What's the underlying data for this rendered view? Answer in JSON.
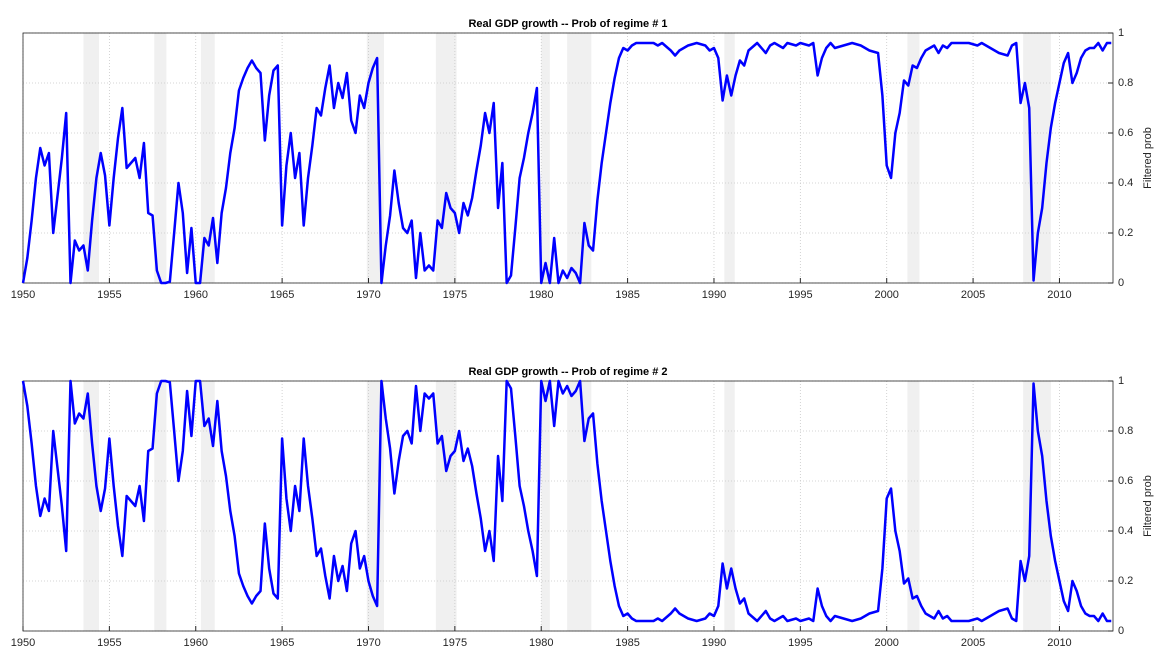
{
  "chart_data": [
    {
      "type": "line",
      "title": "Real GDP growth -- Prob of regime # 1",
      "ylabel": "Filtered prob",
      "x": [
        1950,
        1950.25,
        1950.5,
        1950.75,
        1951,
        1951.25,
        1951.5,
        1951.75,
        1952,
        1952.25,
        1952.5,
        1952.75,
        1953,
        1953.25,
        1953.5,
        1953.75,
        1954,
        1954.25,
        1954.5,
        1954.75,
        1955,
        1955.25,
        1955.5,
        1955.75,
        1956,
        1956.25,
        1956.5,
        1956.75,
        1957,
        1957.25,
        1957.5,
        1957.75,
        1958,
        1958.25,
        1958.5,
        1958.75,
        1959,
        1959.25,
        1959.5,
        1959.75,
        1960,
        1960.25,
        1960.5,
        1960.75,
        1961,
        1961.25,
        1961.5,
        1961.75,
        1962,
        1962.25,
        1962.5,
        1962.75,
        1963,
        1963.25,
        1963.5,
        1963.75,
        1964,
        1964.25,
        1964.5,
        1964.75,
        1965,
        1965.25,
        1965.5,
        1965.75,
        1966,
        1966.25,
        1966.5,
        1966.75,
        1967,
        1967.25,
        1967.5,
        1967.75,
        1968,
        1968.25,
        1968.5,
        1968.75,
        1969,
        1969.25,
        1969.5,
        1969.75,
        1970,
        1970.25,
        1970.5,
        1970.75,
        1971,
        1971.25,
        1971.5,
        1971.75,
        1972,
        1972.25,
        1972.5,
        1972.75,
        1973,
        1973.25,
        1973.5,
        1973.75,
        1974,
        1974.25,
        1974.5,
        1974.75,
        1975,
        1975.25,
        1975.5,
        1975.75,
        1976,
        1976.25,
        1976.5,
        1976.75,
        1977,
        1977.25,
        1977.5,
        1977.75,
        1978,
        1978.25,
        1978.5,
        1978.75,
        1979,
        1979.25,
        1979.5,
        1979.75,
        1980,
        1980.25,
        1980.5,
        1980.75,
        1981,
        1981.25,
        1981.5,
        1981.75,
        1982,
        1982.25,
        1982.5,
        1982.75,
        1983,
        1983.25,
        1983.5,
        1983.75,
        1984,
        1984.25,
        1984.5,
        1984.75,
        1985,
        1985.25,
        1985.5,
        1985.75,
        1986,
        1986.5,
        1986.75,
        1987,
        1987.5,
        1987.75,
        1988,
        1988.5,
        1989,
        1989.5,
        1989.75,
        1990,
        1990.25,
        1990.5,
        1990.75,
        1991,
        1991.25,
        1991.5,
        1991.75,
        1992,
        1992.5,
        1993,
        1993.25,
        1993.5,
        1994,
        1994.25,
        1994.75,
        1995,
        1995.5,
        1995.75,
        1996,
        1996.25,
        1996.5,
        1996.75,
        1997,
        1997.5,
        1998,
        1998.5,
        1999,
        1999.5,
        1999.75,
        2000,
        2000.25,
        2000.5,
        2000.75,
        2001,
        2001.25,
        2001.5,
        2001.75,
        2002,
        2002.25,
        2002.5,
        2002.75,
        2003,
        2003.25,
        2003.5,
        2003.75,
        2004.25,
        2004.75,
        2005.25,
        2005.5,
        2006,
        2006.5,
        2007,
        2007.25,
        2007.5,
        2007.75,
        2008,
        2008.25,
        2008.5,
        2008.75,
        2009,
        2009.25,
        2009.5,
        2009.75,
        2010,
        2010.25,
        2010.5,
        2010.75,
        2011,
        2011.25,
        2011.5,
        2011.75,
        2012,
        2012.25,
        2012.5,
        2012.75,
        2013
      ],
      "series": [
        {
          "color": "#0000ff",
          "values": [
            0,
            0.1,
            0.25,
            0.42,
            0.54,
            0.47,
            0.52,
            0.2,
            0.35,
            0.5,
            0.68,
            0,
            0.17,
            0.13,
            0.15,
            0.05,
            0.25,
            0.42,
            0.52,
            0.43,
            0.23,
            0.42,
            0.58,
            0.7,
            0.46,
            0.48,
            0.5,
            0.42,
            0.56,
            0.28,
            0.27,
            0.05,
            0,
            0,
            0.005,
            0.2,
            0.4,
            0.28,
            0.04,
            0.22,
            0,
            0,
            0.18,
            0.15,
            0.26,
            0.08,
            0.28,
            0.38,
            0.52,
            0.62,
            0.77,
            0.82,
            0.86,
            0.89,
            0.86,
            0.84,
            0.57,
            0.75,
            0.85,
            0.87,
            0.23,
            0.47,
            0.6,
            0.42,
            0.52,
            0.23,
            0.42,
            0.55,
            0.7,
            0.67,
            0.78,
            0.87,
            0.7,
            0.8,
            0.74,
            0.84,
            0.65,
            0.6,
            0.75,
            0.7,
            0.8,
            0.86,
            0.9,
            0,
            0.15,
            0.27,
            0.45,
            0.32,
            0.22,
            0.2,
            0.25,
            0.02,
            0.2,
            0.05,
            0.07,
            0.05,
            0.25,
            0.22,
            0.36,
            0.3,
            0.28,
            0.2,
            0.32,
            0.27,
            0.34,
            0.45,
            0.55,
            0.68,
            0.6,
            0.72,
            0.3,
            0.48,
            0,
            0.03,
            0.22,
            0.42,
            0.5,
            0.6,
            0.68,
            0.78,
            0,
            0.08,
            0,
            0.18,
            0,
            0.05,
            0.02,
            0.06,
            0.04,
            0,
            0.24,
            0.15,
            0.13,
            0.33,
            0.48,
            0.6,
            0.72,
            0.82,
            0.9,
            0.94,
            0.93,
            0.95,
            0.96,
            0.96,
            0.96,
            0.96,
            0.95,
            0.96,
            0.93,
            0.91,
            0.93,
            0.95,
            0.96,
            0.95,
            0.93,
            0.94,
            0.9,
            0.73,
            0.83,
            0.75,
            0.83,
            0.89,
            0.87,
            0.93,
            0.96,
            0.92,
            0.95,
            0.96,
            0.94,
            0.96,
            0.95,
            0.96,
            0.95,
            0.96,
            0.83,
            0.9,
            0.94,
            0.96,
            0.94,
            0.95,
            0.96,
            0.95,
            0.93,
            0.92,
            0.75,
            0.47,
            0.42,
            0.6,
            0.68,
            0.81,
            0.79,
            0.87,
            0.86,
            0.9,
            0.93,
            0.94,
            0.95,
            0.92,
            0.95,
            0.94,
            0.96,
            0.96,
            0.96,
            0.95,
            0.96,
            0.94,
            0.92,
            0.91,
            0.95,
            0.96,
            0.72,
            0.8,
            0.7,
            0.01,
            0.2,
            0.3,
            0.48,
            0.62,
            0.72,
            0.8,
            0.88,
            0.92,
            0.8,
            0.84,
            0.9,
            0.93,
            0.94,
            0.94,
            0.96,
            0.93,
            0.96,
            0.96
          ]
        }
      ],
      "xlim": [
        1950,
        2013.1
      ],
      "xticks": [
        1950,
        1955,
        1960,
        1965,
        1970,
        1975,
        1980,
        1985,
        1990,
        1995,
        2000,
        2005,
        2010
      ],
      "ylim": [
        0,
        1
      ],
      "yticks": [
        0,
        0.2,
        0.4,
        0.6,
        0.8,
        1
      ],
      "grid": true,
      "shade_color": "#f0f0f0",
      "shaded_periods": [
        [
          1953.5,
          1954.4
        ],
        [
          1957.6,
          1958.3
        ],
        [
          1960.3,
          1961.1
        ],
        [
          1969.9,
          1970.9
        ],
        [
          1973.9,
          1975.1
        ],
        [
          1980.0,
          1980.5
        ],
        [
          1981.5,
          1982.9
        ],
        [
          1990.6,
          1991.2
        ],
        [
          2001.2,
          2001.9
        ],
        [
          2007.9,
          2009.5
        ]
      ]
    },
    {
      "type": "line",
      "title": "Real GDP growth -- Prob of regime # 2",
      "ylabel": "Filtered prob",
      "x": [
        1950,
        1950.25,
        1950.5,
        1950.75,
        1951,
        1951.25,
        1951.5,
        1951.75,
        1952,
        1952.25,
        1952.5,
        1952.75,
        1953,
        1953.25,
        1953.5,
        1953.75,
        1954,
        1954.25,
        1954.5,
        1954.75,
        1955,
        1955.25,
        1955.5,
        1955.75,
        1956,
        1956.25,
        1956.5,
        1956.75,
        1957,
        1957.25,
        1957.5,
        1957.75,
        1958,
        1958.25,
        1958.5,
        1958.75,
        1959,
        1959.25,
        1959.5,
        1959.75,
        1960,
        1960.25,
        1960.5,
        1960.75,
        1961,
        1961.25,
        1961.5,
        1961.75,
        1962,
        1962.25,
        1962.5,
        1962.75,
        1963,
        1963.25,
        1963.5,
        1963.75,
        1964,
        1964.25,
        1964.5,
        1964.75,
        1965,
        1965.25,
        1965.5,
        1965.75,
        1966,
        1966.25,
        1966.5,
        1966.75,
        1967,
        1967.25,
        1967.5,
        1967.75,
        1968,
        1968.25,
        1968.5,
        1968.75,
        1969,
        1969.25,
        1969.5,
        1969.75,
        1970,
        1970.25,
        1970.5,
        1970.75,
        1971,
        1971.25,
        1971.5,
        1971.75,
        1972,
        1972.25,
        1972.5,
        1972.75,
        1973,
        1973.25,
        1973.5,
        1973.75,
        1974,
        1974.25,
        1974.5,
        1974.75,
        1975,
        1975.25,
        1975.5,
        1975.75,
        1976,
        1976.25,
        1976.5,
        1976.75,
        1977,
        1977.25,
        1977.5,
        1977.75,
        1978,
        1978.25,
        1978.5,
        1978.75,
        1979,
        1979.25,
        1979.5,
        1979.75,
        1980,
        1980.25,
        1980.5,
        1980.75,
        1981,
        1981.25,
        1981.5,
        1981.75,
        1982,
        1982.25,
        1982.5,
        1982.75,
        1983,
        1983.25,
        1983.5,
        1983.75,
        1984,
        1984.25,
        1984.5,
        1984.75,
        1985,
        1985.25,
        1985.5,
        1985.75,
        1986,
        1986.5,
        1986.75,
        1987,
        1987.5,
        1987.75,
        1988,
        1988.5,
        1989,
        1989.5,
        1989.75,
        1990,
        1990.25,
        1990.5,
        1990.75,
        1991,
        1991.25,
        1991.5,
        1991.75,
        1992,
        1992.5,
        1993,
        1993.25,
        1993.5,
        1994,
        1994.25,
        1994.75,
        1995,
        1995.5,
        1995.75,
        1996,
        1996.25,
        1996.5,
        1996.75,
        1997,
        1997.5,
        1998,
        1998.5,
        1999,
        1999.5,
        1999.75,
        2000,
        2000.25,
        2000.5,
        2000.75,
        2001,
        2001.25,
        2001.5,
        2001.75,
        2002,
        2002.25,
        2002.5,
        2002.75,
        2003,
        2003.25,
        2003.5,
        2003.75,
        2004.25,
        2004.75,
        2005.25,
        2005.5,
        2006,
        2006.5,
        2007,
        2007.25,
        2007.5,
        2007.75,
        2008,
        2008.25,
        2008.5,
        2008.75,
        2009,
        2009.25,
        2009.5,
        2009.75,
        2010,
        2010.25,
        2010.5,
        2010.75,
        2011,
        2011.25,
        2011.5,
        2011.75,
        2012,
        2012.25,
        2012.5,
        2012.75,
        2013
      ],
      "series": [
        {
          "color": "#0000ff",
          "values": [
            1,
            0.9,
            0.75,
            0.58,
            0.46,
            0.53,
            0.48,
            0.8,
            0.65,
            0.5,
            0.32,
            1,
            0.83,
            0.87,
            0.85,
            0.95,
            0.75,
            0.58,
            0.48,
            0.57,
            0.77,
            0.58,
            0.42,
            0.3,
            0.54,
            0.52,
            0.5,
            0.58,
            0.44,
            0.72,
            0.73,
            0.95,
            1,
            1,
            0.995,
            0.8,
            0.6,
            0.72,
            0.96,
            0.78,
            1,
            1,
            0.82,
            0.85,
            0.74,
            0.92,
            0.72,
            0.62,
            0.48,
            0.38,
            0.23,
            0.18,
            0.14,
            0.11,
            0.14,
            0.16,
            0.43,
            0.25,
            0.15,
            0.13,
            0.77,
            0.53,
            0.4,
            0.58,
            0.48,
            0.77,
            0.58,
            0.45,
            0.3,
            0.33,
            0.22,
            0.13,
            0.3,
            0.2,
            0.26,
            0.16,
            0.35,
            0.4,
            0.25,
            0.3,
            0.2,
            0.14,
            0.1,
            1,
            0.85,
            0.73,
            0.55,
            0.68,
            0.78,
            0.8,
            0.75,
            0.98,
            0.8,
            0.95,
            0.93,
            0.95,
            0.75,
            0.78,
            0.64,
            0.7,
            0.72,
            0.8,
            0.68,
            0.73,
            0.66,
            0.55,
            0.45,
            0.32,
            0.4,
            0.28,
            0.7,
            0.52,
            1,
            0.97,
            0.78,
            0.58,
            0.5,
            0.4,
            0.32,
            0.22,
            1,
            0.92,
            1,
            0.82,
            1,
            0.95,
            0.98,
            0.94,
            0.96,
            1,
            0.76,
            0.85,
            0.87,
            0.67,
            0.52,
            0.4,
            0.28,
            0.18,
            0.1,
            0.06,
            0.07,
            0.05,
            0.04,
            0.04,
            0.04,
            0.04,
            0.05,
            0.04,
            0.07,
            0.09,
            0.07,
            0.05,
            0.04,
            0.05,
            0.07,
            0.06,
            0.1,
            0.27,
            0.17,
            0.25,
            0.17,
            0.11,
            0.13,
            0.07,
            0.04,
            0.08,
            0.05,
            0.04,
            0.06,
            0.04,
            0.05,
            0.04,
            0.05,
            0.04,
            0.17,
            0.1,
            0.06,
            0.04,
            0.06,
            0.05,
            0.04,
            0.05,
            0.07,
            0.08,
            0.25,
            0.53,
            0.57,
            0.4,
            0.32,
            0.19,
            0.21,
            0.13,
            0.14,
            0.1,
            0.07,
            0.06,
            0.05,
            0.08,
            0.05,
            0.06,
            0.04,
            0.04,
            0.04,
            0.05,
            0.04,
            0.06,
            0.08,
            0.09,
            0.05,
            0.04,
            0.28,
            0.2,
            0.3,
            0.99,
            0.8,
            0.7,
            0.52,
            0.38,
            0.28,
            0.2,
            0.12,
            0.08,
            0.2,
            0.16,
            0.1,
            0.07,
            0.06,
            0.06,
            0.04,
            0.07,
            0.04,
            0.04
          ]
        }
      ],
      "xlim": [
        1950,
        2013.1
      ],
      "xticks": [
        1950,
        1955,
        1960,
        1965,
        1970,
        1975,
        1980,
        1985,
        1990,
        1995,
        2000,
        2005,
        2010
      ],
      "ylim": [
        0,
        1
      ],
      "yticks": [
        0,
        0.2,
        0.4,
        0.6,
        0.8,
        1
      ],
      "grid": true,
      "shade_color": "#f0f0f0",
      "shaded_periods": [
        [
          1953.5,
          1954.4
        ],
        [
          1957.6,
          1958.3
        ],
        [
          1960.3,
          1961.1
        ],
        [
          1969.9,
          1970.9
        ],
        [
          1973.9,
          1975.1
        ],
        [
          1980.0,
          1980.5
        ],
        [
          1981.5,
          1982.9
        ],
        [
          1990.6,
          1991.2
        ],
        [
          2001.2,
          2001.9
        ],
        [
          2007.9,
          2009.5
        ]
      ]
    }
  ]
}
